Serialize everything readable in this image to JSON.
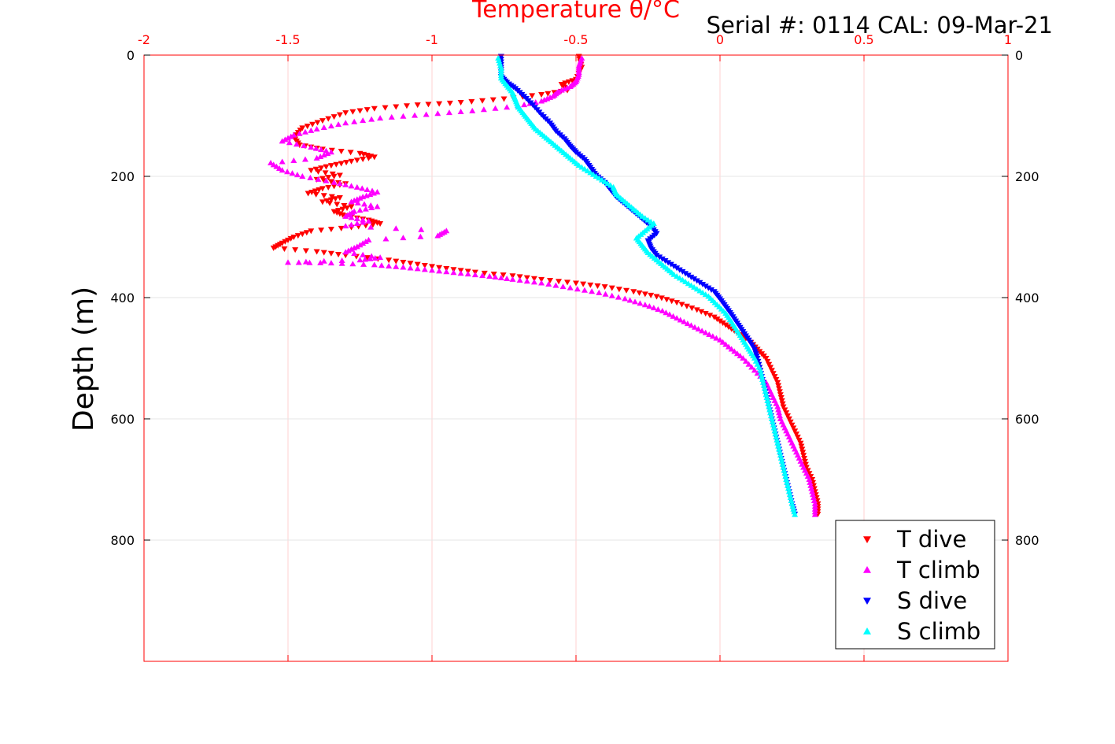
{
  "header": {
    "serial_text": "Serial #: 0114  CAL: 09-Mar-21"
  },
  "chart_data": {
    "type": "scatter",
    "title": "Temperature θ/°C",
    "xlabel": "Temperature θ/°C",
    "ylabel": "Depth (m)",
    "xlim": [
      -2,
      1
    ],
    "ylim": [
      0,
      1000
    ],
    "y_reversed": true,
    "x_ticks": [
      -2,
      -1.5,
      -1,
      -0.5,
      0,
      0.5,
      1
    ],
    "x_tick_labels": [
      "-2",
      "-1.5",
      "-1",
      "-0.5",
      "0",
      "0.5",
      "1"
    ],
    "y_ticks": [
      0,
      200,
      400,
      600,
      800
    ],
    "y_tick_labels": [
      "0",
      "200",
      "400",
      "600",
      "800"
    ],
    "grid": true,
    "legend_position": "bottom-right",
    "colors": {
      "temperature_axis": "#ff0000",
      "grid_x": "#ffd0d0",
      "grid_y": "#e6e6e6"
    },
    "series": [
      {
        "name": "T dive",
        "color": "#ff0000",
        "marker": "triangle-down",
        "points": [
          [
            -0.49,
            2
          ],
          [
            -0.48,
            20
          ],
          [
            -0.5,
            40
          ],
          [
            -0.55,
            48
          ],
          [
            -0.53,
            58
          ],
          [
            -0.62,
            65
          ],
          [
            -0.75,
            72
          ],
          [
            -0.9,
            78
          ],
          [
            -1.05,
            82
          ],
          [
            -1.2,
            88
          ],
          [
            -1.3,
            95
          ],
          [
            -1.38,
            108
          ],
          [
            -1.45,
            120
          ],
          [
            -1.48,
            135
          ],
          [
            -1.46,
            148
          ],
          [
            -1.38,
            155
          ],
          [
            -1.25,
            162
          ],
          [
            -1.2,
            168
          ],
          [
            -1.28,
            175
          ],
          [
            -1.35,
            182
          ],
          [
            -1.42,
            190
          ],
          [
            -1.32,
            198
          ],
          [
            -1.4,
            205
          ],
          [
            -1.3,
            212
          ],
          [
            -1.38,
            220
          ],
          [
            -1.43,
            228
          ],
          [
            -1.32,
            235
          ],
          [
            -1.38,
            242
          ],
          [
            -1.28,
            250
          ],
          [
            -1.34,
            258
          ],
          [
            -1.3,
            265
          ],
          [
            -1.22,
            272
          ],
          [
            -1.18,
            278
          ],
          [
            -1.28,
            284
          ],
          [
            -1.42,
            290
          ],
          [
            -1.48,
            300
          ],
          [
            -1.52,
            310
          ],
          [
            -1.55,
            318
          ],
          [
            -1.4,
            324
          ],
          [
            -1.3,
            330
          ],
          [
            -1.15,
            338
          ],
          [
            -1.05,
            345
          ],
          [
            -0.95,
            352
          ],
          [
            -0.85,
            358
          ],
          [
            -0.72,
            364
          ],
          [
            -0.62,
            370
          ],
          [
            -0.5,
            376
          ],
          [
            -0.4,
            382
          ],
          [
            -0.3,
            390
          ],
          [
            -0.22,
            398
          ],
          [
            -0.15,
            408
          ],
          [
            -0.08,
            420
          ],
          [
            -0.02,
            432
          ],
          [
            0.02,
            445
          ],
          [
            0.06,
            458
          ],
          [
            0.1,
            470
          ],
          [
            0.13,
            485
          ],
          [
            0.16,
            500
          ],
          [
            0.18,
            520
          ],
          [
            0.2,
            540
          ],
          [
            0.21,
            560
          ],
          [
            0.22,
            580
          ],
          [
            0.24,
            600
          ],
          [
            0.26,
            620
          ],
          [
            0.28,
            640
          ],
          [
            0.29,
            660
          ],
          [
            0.3,
            680
          ],
          [
            0.32,
            700
          ],
          [
            0.33,
            720
          ],
          [
            0.34,
            740
          ],
          [
            0.34,
            757
          ]
        ]
      },
      {
        "name": "T climb",
        "color": "#ff00ff",
        "marker": "triangle-up",
        "points": [
          [
            0.33,
            758
          ],
          [
            0.33,
            740
          ],
          [
            0.32,
            720
          ],
          [
            0.31,
            700
          ],
          [
            0.29,
            680
          ],
          [
            0.27,
            660
          ],
          [
            0.25,
            640
          ],
          [
            0.23,
            620
          ],
          [
            0.21,
            600
          ],
          [
            0.2,
            580
          ],
          [
            0.18,
            560
          ],
          [
            0.16,
            540
          ],
          [
            0.12,
            520
          ],
          [
            0.08,
            500
          ],
          [
            0.04,
            485
          ],
          [
            0.0,
            470
          ],
          [
            -0.05,
            458
          ],
          [
            -0.1,
            446
          ],
          [
            -0.15,
            434
          ],
          [
            -0.2,
            422
          ],
          [
            -0.26,
            412
          ],
          [
            -0.33,
            402
          ],
          [
            -0.42,
            392
          ],
          [
            -0.52,
            384
          ],
          [
            -0.62,
            376
          ],
          [
            -0.72,
            370
          ],
          [
            -0.8,
            365
          ],
          [
            -0.9,
            360
          ],
          [
            -1.0,
            355
          ],
          [
            -1.1,
            350
          ],
          [
            -1.2,
            346
          ],
          [
            -1.35,
            343
          ],
          [
            -1.5,
            342
          ],
          [
            -1.25,
            338
          ],
          [
            -1.18,
            334
          ],
          [
            -1.3,
            325
          ],
          [
            -1.26,
            316
          ],
          [
            -1.22,
            305
          ],
          [
            -0.98,
            298
          ],
          [
            -0.95,
            290
          ],
          [
            -1.3,
            282
          ],
          [
            -1.22,
            274
          ],
          [
            -1.3,
            266
          ],
          [
            -1.27,
            258
          ],
          [
            -1.19,
            250
          ],
          [
            -1.28,
            242
          ],
          [
            -1.24,
            234
          ],
          [
            -1.19,
            226
          ],
          [
            -1.26,
            218
          ],
          [
            -1.34,
            210
          ],
          [
            -1.45,
            200
          ],
          [
            -1.52,
            190
          ],
          [
            -1.56,
            178
          ],
          [
            -1.4,
            170
          ],
          [
            -1.35,
            160
          ],
          [
            -1.42,
            152
          ],
          [
            -1.52,
            142
          ],
          [
            -1.48,
            132
          ],
          [
            -1.4,
            122
          ],
          [
            -1.3,
            112
          ],
          [
            -1.18,
            104
          ],
          [
            -1.02,
            98
          ],
          [
            -0.86,
            92
          ],
          [
            -0.7,
            84
          ],
          [
            -0.62,
            76
          ],
          [
            -0.58,
            68
          ],
          [
            -0.56,
            60
          ],
          [
            -0.52,
            52
          ],
          [
            -0.5,
            44
          ],
          [
            -0.49,
            32
          ],
          [
            -0.49,
            18
          ],
          [
            -0.48,
            5
          ]
        ]
      },
      {
        "name": "S dive",
        "color": "#0000ff",
        "marker": "triangle-down",
        "points": [
          [
            -0.76,
            2
          ],
          [
            -0.76,
            20
          ],
          [
            -0.76,
            35
          ],
          [
            -0.74,
            45
          ],
          [
            -0.71,
            55
          ],
          [
            -0.68,
            68
          ],
          [
            -0.65,
            82
          ],
          [
            -0.62,
            98
          ],
          [
            -0.59,
            112
          ],
          [
            -0.57,
            125
          ],
          [
            -0.54,
            138
          ],
          [
            -0.52,
            150
          ],
          [
            -0.5,
            160
          ],
          [
            -0.47,
            172
          ],
          [
            -0.45,
            185
          ],
          [
            -0.43,
            198
          ],
          [
            -0.4,
            210
          ],
          [
            -0.38,
            222
          ],
          [
            -0.36,
            234
          ],
          [
            -0.33,
            246
          ],
          [
            -0.3,
            258
          ],
          [
            -0.27,
            270
          ],
          [
            -0.24,
            282
          ],
          [
            -0.22,
            294
          ],
          [
            -0.25,
            306
          ],
          [
            -0.24,
            318
          ],
          [
            -0.22,
            330
          ],
          [
            -0.18,
            342
          ],
          [
            -0.14,
            354
          ],
          [
            -0.1,
            366
          ],
          [
            -0.06,
            378
          ],
          [
            -0.02,
            390
          ],
          [
            0.0,
            402
          ],
          [
            0.02,
            415
          ],
          [
            0.04,
            428
          ],
          [
            0.06,
            442
          ],
          [
            0.08,
            456
          ],
          [
            0.1,
            470
          ],
          [
            0.12,
            485
          ],
          [
            0.13,
            500
          ],
          [
            0.14,
            520
          ],
          [
            0.15,
            540
          ],
          [
            0.16,
            560
          ],
          [
            0.17,
            580
          ],
          [
            0.18,
            600
          ],
          [
            0.19,
            620
          ],
          [
            0.2,
            640
          ],
          [
            0.21,
            660
          ],
          [
            0.22,
            680
          ],
          [
            0.23,
            700
          ],
          [
            0.24,
            720
          ],
          [
            0.25,
            740
          ],
          [
            0.26,
            757
          ]
        ]
      },
      {
        "name": "S climb",
        "color": "#00ffff",
        "marker": "triangle-up",
        "points": [
          [
            0.26,
            758
          ],
          [
            0.25,
            740
          ],
          [
            0.24,
            720
          ],
          [
            0.23,
            700
          ],
          [
            0.22,
            680
          ],
          [
            0.21,
            660
          ],
          [
            0.2,
            640
          ],
          [
            0.19,
            620
          ],
          [
            0.18,
            600
          ],
          [
            0.17,
            580
          ],
          [
            0.16,
            560
          ],
          [
            0.15,
            540
          ],
          [
            0.14,
            520
          ],
          [
            0.12,
            500
          ],
          [
            0.1,
            485
          ],
          [
            0.08,
            470
          ],
          [
            0.06,
            455
          ],
          [
            0.04,
            440
          ],
          [
            0.02,
            426
          ],
          [
            -0.01,
            412
          ],
          [
            -0.04,
            398
          ],
          [
            -0.08,
            386
          ],
          [
            -0.12,
            374
          ],
          [
            -0.16,
            362
          ],
          [
            -0.19,
            350
          ],
          [
            -0.22,
            338
          ],
          [
            -0.25,
            326
          ],
          [
            -0.27,
            314
          ],
          [
            -0.29,
            302
          ],
          [
            -0.26,
            290
          ],
          [
            -0.23,
            278
          ],
          [
            -0.27,
            266
          ],
          [
            -0.3,
            254
          ],
          [
            -0.33,
            242
          ],
          [
            -0.36,
            230
          ],
          [
            -0.37,
            218
          ],
          [
            -0.41,
            206
          ],
          [
            -0.45,
            194
          ],
          [
            -0.49,
            182
          ],
          [
            -0.52,
            170
          ],
          [
            -0.55,
            158
          ],
          [
            -0.58,
            146
          ],
          [
            -0.61,
            134
          ],
          [
            -0.64,
            122
          ],
          [
            -0.66,
            110
          ],
          [
            -0.68,
            98
          ],
          [
            -0.7,
            86
          ],
          [
            -0.71,
            74
          ],
          [
            -0.72,
            62
          ],
          [
            -0.74,
            50
          ],
          [
            -0.76,
            38
          ],
          [
            -0.76,
            22
          ],
          [
            -0.77,
            5
          ]
        ]
      }
    ]
  }
}
